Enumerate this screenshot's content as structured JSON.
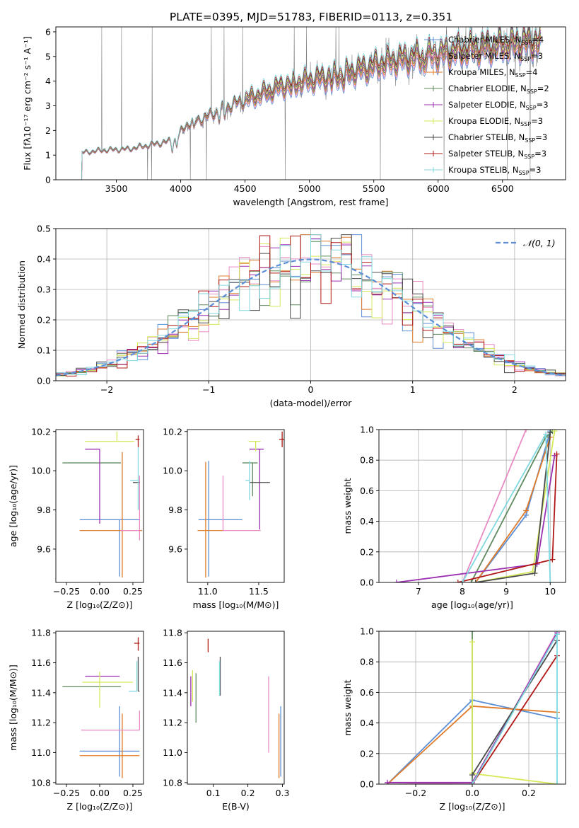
{
  "figure_title": "PLATE=0395, MJD=51783, FIBERID=0113, z=0.351",
  "chart_data": [
    {
      "id": "spectrum",
      "type": "line",
      "xlabel": "wavelength [Angstrom, rest frame]",
      "ylabel": "Flux [fλ10⁻¹⁷ erg cm⁻² s⁻¹ A⁻¹]",
      "xlim": [
        3030,
        6990
      ],
      "ylim": [
        0,
        6.2
      ],
      "xticks": [
        3500,
        4000,
        4500,
        5000,
        5500,
        6000,
        6500
      ],
      "yticks": [
        0,
        1,
        2,
        3,
        4,
        5,
        6
      ],
      "legend_position": "upper right",
      "data_series": {
        "name": "",
        "color": "#808080",
        "x_range": [
          3230,
          6800
        ]
      },
      "series": [
        {
          "name": "Chabrier MILES, N",
          "sub": "SSP",
          "n": "=4",
          "color": "#5b8ed6",
          "marker": "+"
        },
        {
          "name": "Salpeter MILES, N",
          "sub": "SSP",
          "n": "=3",
          "color": "#e88bc4",
          "marker": "+"
        },
        {
          "name": "Kroupa MILES, N",
          "sub": "SSP",
          "n": "=4",
          "color": "#e07b2a",
          "marker": "+"
        },
        {
          "name": "Chabrier ELODIE, N",
          "sub": "SSP",
          "n": "=2",
          "color": "#5f8a5f",
          "marker": "+"
        },
        {
          "name": "Salpeter ELODIE, N",
          "sub": "SSP",
          "n": "=3",
          "color": "#9b30b0",
          "marker": "+"
        },
        {
          "name": "Kroupa ELODIE, N",
          "sub": "SSP",
          "n": "=3",
          "color": "#d6e85a",
          "marker": "+"
        },
        {
          "name": "Chabrier STELIB, N",
          "sub": "SSP",
          "n": "=3",
          "color": "#4a4a4a",
          "marker": "+"
        },
        {
          "name": "Salpeter STELIB, N",
          "sub": "SSP",
          "n": "=3",
          "color": "#b01818",
          "marker": "+"
        },
        {
          "name": "Kroupa STELIB, N",
          "sub": "SSP",
          "n": "=3",
          "color": "#80d8e0",
          "marker": "+"
        }
      ],
      "model_continuum": {
        "x": [
          3230,
          3400,
          3600,
          3800,
          3950,
          4050,
          4200,
          4400,
          4600,
          4800,
          4900,
          5100,
          5300,
          5500,
          5700,
          5900,
          6100,
          6300,
          6500,
          6700,
          6800
        ],
        "y": [
          1.1,
          1.2,
          1.25,
          1.45,
          1.6,
          2.25,
          2.55,
          3.05,
          3.4,
          3.8,
          3.9,
          4.1,
          4.3,
          4.6,
          4.85,
          5.0,
          5.15,
          5.3,
          5.45,
          5.55,
          5.6
        ]
      }
    },
    {
      "id": "residual-histogram",
      "type": "histogram",
      "xlabel": "(data-model)/error",
      "ylabel": "Normed distribution",
      "xlim": [
        -2.5,
        2.5
      ],
      "ylim": [
        0,
        0.5
      ],
      "xticks": [
        -2,
        -1,
        0,
        1,
        2
      ],
      "yticks": [
        0.0,
        0.1,
        0.2,
        0.3,
        0.4,
        0.5
      ],
      "grid": true,
      "legend_position": "upper right",
      "reference_curve": {
        "name": "𝒩(0, 1)",
        "color": "#5b8ed6",
        "style": "dashed"
      },
      "bin_width": 0.1
    },
    {
      "id": "age-vs-z",
      "type": "errorbar",
      "xlabel": "Z [log₁₀(Z/Z⊙)]",
      "ylabel": "age  [log₁₀(age/yr)]",
      "xlim": [
        -0.33,
        0.33
      ],
      "ylim": [
        9.43,
        10.21
      ],
      "xticks": [
        -0.25,
        0.0,
        0.25
      ],
      "yticks": [
        9.6,
        9.8,
        10.0,
        10.2
      ],
      "points": [
        {
          "color": "#5b8ed6",
          "x": 0.15,
          "xerr": [
            0.3,
            0.15
          ],
          "y": 9.75,
          "yerr": [
            0.29,
            0.0
          ]
        },
        {
          "color": "#e07b2a",
          "x": 0.17,
          "xerr": [
            0.32,
            0.15
          ],
          "y": 9.695,
          "yerr": [
            0.24,
            0.4
          ]
        },
        {
          "color": "#e88bc4",
          "x": 0.3,
          "xerr": [
            0.14,
            0.0
          ],
          "y": 9.695,
          "yerr": [
            0.05,
            0.28
          ]
        },
        {
          "color": "#5f8a5f",
          "x": 0.16,
          "xerr": [
            0.44,
            0.0
          ],
          "y": 10.04,
          "yerr": [
            0.0,
            0.0
          ]
        },
        {
          "color": "#9b30b0",
          "x": 0.0,
          "xerr": [
            0.11,
            0.0
          ],
          "y": 10.11,
          "yerr": [
            0.38,
            0.0
          ]
        },
        {
          "color": "#d6e85a",
          "x": 0.13,
          "xerr": [
            0.24,
            0.13
          ],
          "y": 10.15,
          "yerr": [
            0.0,
            0.05
          ]
        },
        {
          "color": "#4a4a4a",
          "x": 0.25,
          "xerr": [
            0.0,
            0.05
          ],
          "y": 9.94,
          "yerr": [
            0.0,
            0.0
          ]
        },
        {
          "color": "#b01818",
          "x": 0.29,
          "xerr": [
            0.02,
            0.01
          ],
          "y": 10.16,
          "yerr": [
            0.04,
            0.02
          ]
        },
        {
          "color": "#80d8e0",
          "x": 0.29,
          "xerr": [
            0.06,
            0.0
          ],
          "y": 9.95,
          "yerr": [
            0.15,
            0.17
          ]
        }
      ]
    },
    {
      "id": "age-vs-mass",
      "type": "errorbar",
      "xlabel": "mass [log₁₀(M/M⊙)]",
      "ylabel": "",
      "xlim": [
        10.8,
        11.75
      ],
      "ylim": [
        9.43,
        10.21
      ],
      "xticks": [
        11.0,
        11.5
      ],
      "yticks": [
        9.6,
        9.8,
        10.0,
        10.2
      ],
      "points": [
        {
          "color": "#5b8ed6",
          "x": 11.01,
          "xerr": [
            0.1,
            0.33
          ],
          "y": 9.75,
          "yerr": [
            0.29,
            0.3
          ]
        },
        {
          "color": "#e07b2a",
          "x": 10.98,
          "xerr": [
            0.08,
            0.18
          ],
          "y": 9.695,
          "yerr": [
            0.24,
            0.35
          ]
        },
        {
          "color": "#e88bc4",
          "x": 11.15,
          "xerr": [
            0.0,
            0.37
          ],
          "y": 9.695,
          "yerr": [
            0.0,
            0.28
          ]
        },
        {
          "color": "#5f8a5f",
          "x": 11.44,
          "xerr": [
            0.1,
            0.05
          ],
          "y": 10.04,
          "yerr": [
            0.17,
            0.0
          ]
        },
        {
          "color": "#9b30b0",
          "x": 11.51,
          "xerr": [
            0.1,
            0.04
          ],
          "y": 10.11,
          "yerr": [
            0.41,
            0.0
          ]
        },
        {
          "color": "#d6e85a",
          "x": 11.47,
          "xerr": [
            0.07,
            0.05
          ],
          "y": 10.15,
          "yerr": [
            0.05,
            0.0
          ]
        },
        {
          "color": "#4a4a4a",
          "x": 11.41,
          "xerr": [
            0.0,
            0.2
          ],
          "y": 9.94,
          "yerr": [
            0.0,
            0.0
          ]
        },
        {
          "color": "#b01818",
          "x": 11.73,
          "xerr": [
            0.03,
            0.03
          ],
          "y": 10.16,
          "yerr": [
            0.04,
            0.04
          ]
        },
        {
          "color": "#80d8e0",
          "x": 11.41,
          "xerr": [
            0.04,
            0.0
          ],
          "y": 9.95,
          "yerr": [
            0.1,
            0.1
          ]
        }
      ]
    },
    {
      "id": "mass-weight-vs-age",
      "type": "line",
      "xlabel": "age  [log₁₀(age/yr)]",
      "ylabel": "mass weight",
      "xlim": [
        6.1,
        10.35
      ],
      "ylim": [
        0,
        1.0
      ],
      "xticks": [
        7,
        8,
        9,
        10
      ],
      "yticks": [
        0.0,
        0.2,
        0.4,
        0.6,
        0.8,
        1.0
      ],
      "grid": true,
      "series": [
        {
          "color": "#5b8ed6",
          "x": [
            8.3,
            9.45,
            10.0
          ],
          "y": [
            0.0,
            0.44,
            0.99
          ]
        },
        {
          "color": "#e07b2a",
          "x": [
            8.3,
            9.45,
            10.0
          ],
          "y": [
            0.0,
            0.47,
            0.95
          ]
        },
        {
          "color": "#e88bc4",
          "x": [
            8.0,
            9.45
          ],
          "y": [
            0.0,
            1.0
          ]
        },
        {
          "color": "#5f8a5f",
          "x": [
            8.2,
            9.9,
            10.05
          ],
          "y": [
            0.0,
            0.95,
            0.99
          ]
        },
        {
          "color": "#9b30b0",
          "x": [
            6.5,
            9.7,
            10.1
          ],
          "y": [
            0.0,
            0.12,
            0.83
          ]
        },
        {
          "color": "#d6e85a",
          "x": [
            8.3,
            9.6,
            10.1
          ],
          "y": [
            0.0,
            0.07,
            0.99
          ]
        },
        {
          "color": "#4a4a4a",
          "x": [
            8.3,
            9.65,
            10.0
          ],
          "y": [
            0.0,
            0.06,
            0.98
          ]
        },
        {
          "color": "#b01818",
          "x": [
            7.9,
            10.05,
            10.15
          ],
          "y": [
            0.0,
            0.15,
            0.84
          ]
        },
        {
          "color": "#80d8e0",
          "x": [
            8.0,
            9.9,
            10.0
          ],
          "y": [
            0.0,
            0.97,
            0.0
          ]
        }
      ]
    },
    {
      "id": "mass-vs-z",
      "type": "errorbar",
      "xlabel": "Z [log₁₀(Z/Z⊙)]",
      "ylabel": "mass [log₁₀(M/M⊙)]",
      "xlim": [
        -0.33,
        0.33
      ],
      "ylim": [
        10.79,
        11.81
      ],
      "xticks": [
        -0.25,
        0.0,
        0.25
      ],
      "yticks": [
        10.8,
        11.0,
        11.2,
        11.4,
        11.6,
        11.8
      ],
      "points": [
        {
          "color": "#5b8ed6",
          "x": 0.15,
          "xerr": [
            0.3,
            0.15
          ],
          "y": 11.01,
          "yerr": [
            0.17,
            0.3
          ]
        },
        {
          "color": "#e07b2a",
          "x": 0.17,
          "xerr": [
            0.32,
            0.13
          ],
          "y": 10.98,
          "yerr": [
            0.15,
            0.28
          ]
        },
        {
          "color": "#e88bc4",
          "x": 0.3,
          "xerr": [
            0.44,
            0.0
          ],
          "y": 11.15,
          "yerr": [
            0.0,
            0.13
          ]
        },
        {
          "color": "#5f8a5f",
          "x": 0.16,
          "xerr": [
            0.44,
            0.0
          ],
          "y": 11.44,
          "yerr": [
            0.0,
            0.0
          ]
        },
        {
          "color": "#9b30b0",
          "x": 0.0,
          "xerr": [
            0.11,
            0.15
          ],
          "y": 11.51,
          "yerr": [
            0.0,
            0.0
          ]
        },
        {
          "color": "#d6e85a",
          "x": 0.0,
          "xerr": [
            0.13,
            0.25
          ],
          "y": 11.47,
          "yerr": [
            0.17,
            0.07
          ]
        },
        {
          "color": "#4a4a4a",
          "x": 0.29,
          "xerr": [
            0.0,
            0.01
          ],
          "y": 11.41,
          "yerr": [
            0.0,
            0.23
          ]
        },
        {
          "color": "#b01818",
          "x": 0.29,
          "xerr": [
            0.03,
            0.01
          ],
          "y": 11.73,
          "yerr": [
            0.05,
            0.04
          ]
        },
        {
          "color": "#80d8e0",
          "x": 0.28,
          "xerr": [
            0.06,
            0.0
          ],
          "y": 11.41,
          "yerr": [
            0.0,
            0.2
          ]
        }
      ]
    },
    {
      "id": "mass-vs-ebv",
      "type": "errorbar",
      "xlabel": "E(B-V)",
      "ylabel": "",
      "xlim": [
        0.025,
        0.305
      ],
      "ylim": [
        10.79,
        11.81
      ],
      "xticks": [
        0.1,
        0.2,
        0.3
      ],
      "yticks": [
        10.8,
        11.0,
        11.2,
        11.4,
        11.6,
        11.8
      ],
      "points": [
        {
          "color": "#5b8ed6",
          "x": 0.295,
          "y": 11.01,
          "yerr": [
            0.17,
            0.3
          ]
        },
        {
          "color": "#e07b2a",
          "x": 0.29,
          "y": 10.98,
          "yerr": [
            0.15,
            0.28
          ]
        },
        {
          "color": "#e88bc4",
          "x": 0.26,
          "y": 11.15,
          "yerr": [
            0.15,
            0.36
          ]
        },
        {
          "color": "#5f8a5f",
          "x": 0.05,
          "y": 11.44,
          "yerr": [
            0.24,
            0.09
          ]
        },
        {
          "color": "#9b30b0",
          "x": 0.035,
          "y": 11.51,
          "yerr": [
            0.2,
            0.0
          ]
        },
        {
          "color": "#d6e85a",
          "x": 0.04,
          "y": 11.47,
          "yerr": [
            0.13,
            0.08
          ]
        },
        {
          "color": "#4a4a4a",
          "x": 0.12,
          "y": 11.41,
          "yerr": [
            0.03,
            0.23
          ]
        },
        {
          "color": "#b01818",
          "x": 0.085,
          "y": 11.73,
          "yerr": [
            0.06,
            0.03
          ]
        },
        {
          "color": "#80d8e0",
          "x": 0.118,
          "y": 11.41,
          "yerr": [
            0.03,
            0.2
          ]
        }
      ]
    },
    {
      "id": "mass-weight-vs-z",
      "type": "line",
      "xlabel": "Z [log₁₀(Z/Z⊙)]",
      "ylabel": "mass weight",
      "xlim": [
        -0.33,
        0.33
      ],
      "ylim": [
        0,
        1.0
      ],
      "xticks": [
        -0.2,
        0.0,
        0.2
      ],
      "yticks": [
        0.0,
        0.2,
        0.4,
        0.6,
        0.8,
        1.0
      ],
      "grid": true,
      "series": [
        {
          "color": "#5b8ed6",
          "x": [
            -0.3,
            0.0,
            0.3
          ],
          "y": [
            0.0,
            0.55,
            0.43
          ]
        },
        {
          "color": "#e07b2a",
          "x": [
            -0.3,
            0.0,
            0.3
          ],
          "y": [
            0.0,
            0.51,
            0.47
          ]
        },
        {
          "color": "#e88bc4",
          "x": [
            -0.3,
            0.0,
            0.3
          ],
          "y": [
            0.01,
            0.0,
            1.0
          ]
        },
        {
          "color": "#5f8a5f",
          "x": [
            0.0,
            0.0
          ],
          "y": [
            0.0,
            1.0
          ]
        },
        {
          "color": "#9b30b0",
          "x": [
            -0.3,
            0.0,
            0.3
          ],
          "y": [
            0.01,
            0.01,
            0.99
          ]
        },
        {
          "color": "#d6e85a",
          "x": [
            0.0,
            0.0,
            0.3
          ],
          "y": [
            0.93,
            0.07,
            0.0
          ]
        },
        {
          "color": "#4a4a4a",
          "x": [
            0.0,
            0.3
          ],
          "y": [
            0.06,
            0.94
          ]
        },
        {
          "color": "#b01818",
          "x": [
            0.0,
            0.3
          ],
          "y": [
            0.0,
            0.84
          ]
        },
        {
          "color": "#80d8e0",
          "x": [
            0.0,
            0.3,
            0.3
          ],
          "y": [
            0.0,
            0.98,
            0.0
          ]
        }
      ]
    }
  ]
}
